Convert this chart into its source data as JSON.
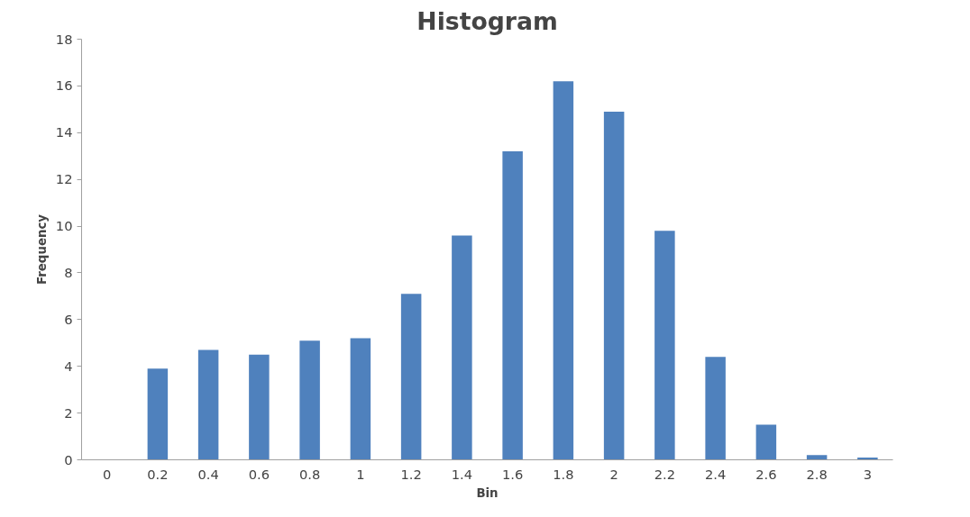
{
  "chart_data": {
    "type": "bar",
    "title": "Histogram",
    "xlabel": "Bin",
    "ylabel": "Frequency",
    "categories": [
      "0",
      "0.2",
      "0.4",
      "0.6",
      "0.8",
      "1",
      "1.2",
      "1.4",
      "1.6",
      "1.8",
      "2",
      "2.2",
      "2.4",
      "2.6",
      "2.8",
      "3"
    ],
    "values": [
      0,
      3.9,
      4.7,
      4.5,
      5.1,
      5.2,
      7.1,
      9.6,
      13.2,
      16.2,
      14.9,
      9.8,
      4.4,
      1.5,
      0.2,
      0.1
    ],
    "color": "#4f81bd",
    "ylim": [
      0,
      18
    ],
    "yticks": [
      0,
      2,
      4,
      6,
      8,
      10,
      12,
      14,
      16,
      18
    ],
    "grid": false
  }
}
